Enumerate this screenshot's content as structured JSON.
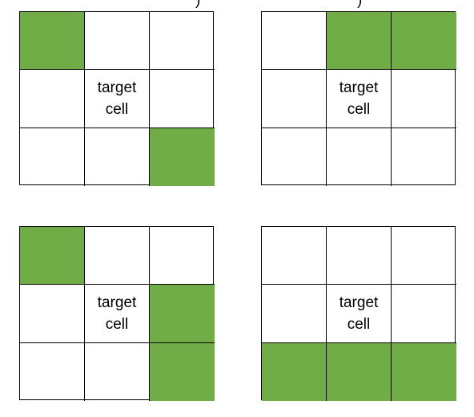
{
  "colors": {
    "filled_cell": "#70ad47",
    "empty_cell": "#ffffff",
    "grid_line": "#000000"
  },
  "top_fragments": [
    ")",
    ")"
  ],
  "grids": [
    {
      "name": "grid-top-left",
      "cells": [
        {
          "filled": true,
          "label": ""
        },
        {
          "filled": false,
          "label": ""
        },
        {
          "filled": false,
          "label": ""
        },
        {
          "filled": false,
          "label": ""
        },
        {
          "filled": false,
          "label": "target\ncell"
        },
        {
          "filled": false,
          "label": ""
        },
        {
          "filled": false,
          "label": ""
        },
        {
          "filled": false,
          "label": ""
        },
        {
          "filled": true,
          "label": ""
        }
      ]
    },
    {
      "name": "grid-top-right",
      "cells": [
        {
          "filled": false,
          "label": ""
        },
        {
          "filled": true,
          "label": ""
        },
        {
          "filled": true,
          "label": ""
        },
        {
          "filled": false,
          "label": ""
        },
        {
          "filled": false,
          "label": "target\ncell"
        },
        {
          "filled": false,
          "label": ""
        },
        {
          "filled": false,
          "label": ""
        },
        {
          "filled": false,
          "label": ""
        },
        {
          "filled": false,
          "label": ""
        }
      ]
    },
    {
      "name": "grid-bottom-left",
      "cells": [
        {
          "filled": true,
          "label": ""
        },
        {
          "filled": false,
          "label": ""
        },
        {
          "filled": false,
          "label": ""
        },
        {
          "filled": false,
          "label": ""
        },
        {
          "filled": false,
          "label": "target\ncell"
        },
        {
          "filled": true,
          "label": ""
        },
        {
          "filled": false,
          "label": ""
        },
        {
          "filled": false,
          "label": ""
        },
        {
          "filled": true,
          "label": ""
        }
      ]
    },
    {
      "name": "grid-bottom-right",
      "cells": [
        {
          "filled": false,
          "label": ""
        },
        {
          "filled": false,
          "label": ""
        },
        {
          "filled": false,
          "label": ""
        },
        {
          "filled": false,
          "label": ""
        },
        {
          "filled": false,
          "label": "target\ncell"
        },
        {
          "filled": false,
          "label": ""
        },
        {
          "filled": true,
          "label": ""
        },
        {
          "filled": true,
          "label": ""
        },
        {
          "filled": true,
          "label": ""
        }
      ]
    }
  ]
}
